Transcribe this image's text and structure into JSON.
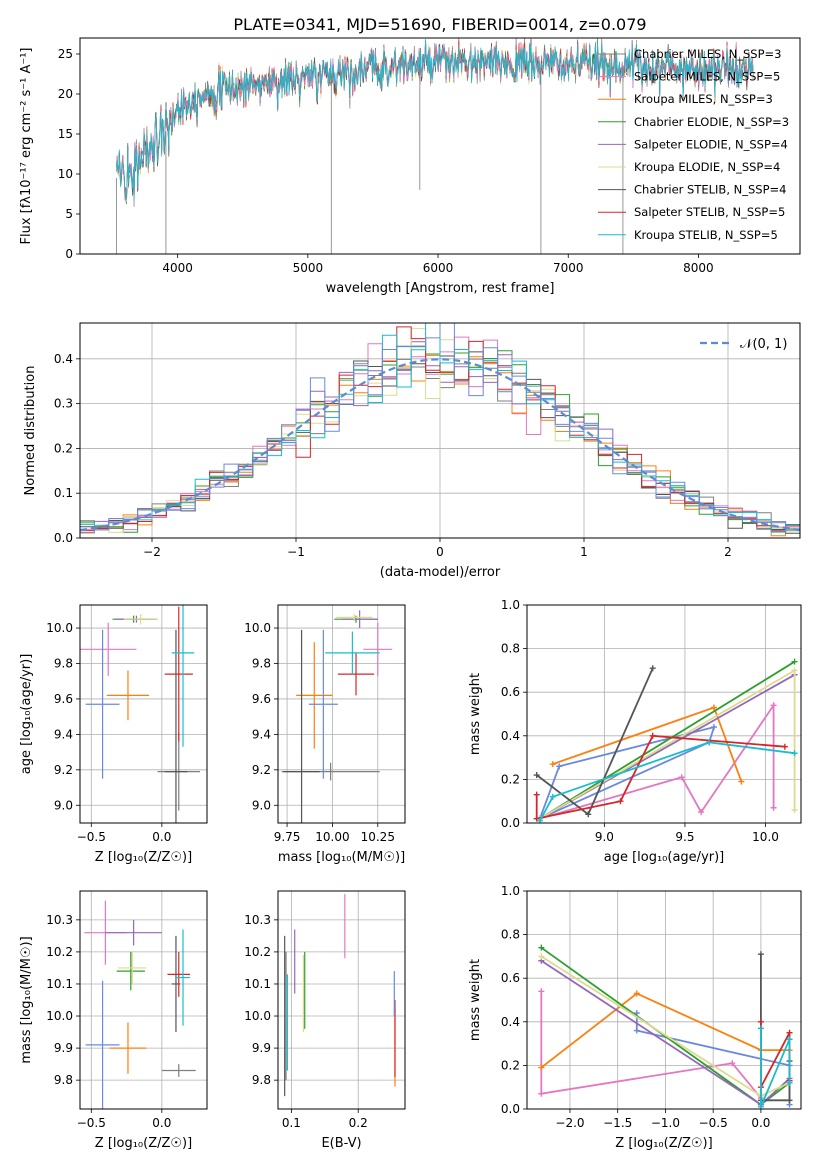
{
  "figure": {
    "title": "PLATE=0341, MJD=51690, FIBERID=0014, z=0.079"
  },
  "colors": {
    "chabrier_miles": "#7f7f7f",
    "salpeter_miles": "#e377c2",
    "kroupa_miles": "#ff7f0e",
    "chabrier_elodie": "#2ca02c",
    "salpeter_elodie": "#9467bd",
    "kroupa_elodie": "#dbdb8d",
    "chabrier_stelib": "#555555",
    "salpeter_stelib": "#d62728",
    "kroupa_stelib": "#17becf"
  },
  "chart_data": [
    {
      "id": "spectrum",
      "type": "line",
      "xlabel": "wavelength [Angstrom, rest frame]",
      "ylabel": "Flux [fλ10⁻¹⁷ erg cm⁻² s⁻¹ A⁻¹]",
      "xlim": [
        3250,
        8780
      ],
      "ylim": [
        0,
        27
      ],
      "xticks": [
        4000,
        5000,
        6000,
        7000,
        8000
      ],
      "yticks": [
        0,
        5,
        10,
        15,
        20,
        25
      ],
      "grid": false,
      "legend_position": "right",
      "legend": [
        {
          "label": "Chabrier MILES, N_SSP=3",
          "color": "#7f7f7f"
        },
        {
          "label": "Salpeter MILES, N_SSP=5",
          "color": "#e377c2"
        },
        {
          "label": "Kroupa MILES, N_SSP=3",
          "color": "#ff7f0e"
        },
        {
          "label": "Chabrier ELODIE, N_SSP=3",
          "color": "#2ca02c"
        },
        {
          "label": "Salpeter ELODIE, N_SSP=4",
          "color": "#9467bd"
        },
        {
          "label": "Kroupa ELODIE, N_SSP=4",
          "color": "#dbdb8d"
        },
        {
          "label": "Chabrier STELIB, N_SSP=4",
          "color": "#555555"
        },
        {
          "label": "Salpeter STELIB, N_SSP=5",
          "color": "#d62728"
        },
        {
          "label": "Kroupa STELIB, N_SSP=5",
          "color": "#17becf"
        }
      ],
      "x_range": [
        3530,
        8420
      ],
      "continuum_x": [
        3530,
        3700,
        3900,
        4000,
        4200,
        4500,
        5000,
        5500,
        6000,
        6500,
        7000,
        7500,
        8000,
        8420
      ],
      "continuum_y": [
        9.5,
        11.5,
        15,
        18.5,
        20,
        21,
        22,
        23.2,
        23.8,
        23.8,
        23.7,
        23.5,
        23.2,
        23.0
      ]
    },
    {
      "id": "residuals",
      "type": "histogram",
      "xlabel": "(data-model)/error",
      "ylabel": "Normed distribution",
      "xlim": [
        -2.5,
        2.5
      ],
      "ylim": [
        0,
        0.48
      ],
      "xticks": [
        -2,
        -1,
        0,
        1,
        2
      ],
      "yticks": [
        0.0,
        0.1,
        0.2,
        0.3,
        0.4
      ],
      "grid": true,
      "legend_position": "top-right",
      "reference_label": "𝒩(0, 1)",
      "bin_width": 0.1,
      "reference_curve": "normal(0,1)"
    },
    {
      "id": "age_vs_Z",
      "type": "errorbar",
      "xlabel": "Z [log₁₀(Z/Z☉)]",
      "ylabel": "age  [log₁₀(age/yr)]",
      "xlim": [
        -0.58,
        0.32
      ],
      "ylim": [
        8.9,
        10.13
      ],
      "xticks": [
        -0.5,
        0.0
      ],
      "yticks": [
        9.0,
        9.2,
        9.4,
        9.6,
        9.8,
        10.0
      ],
      "grid": true,
      "points": [
        {
          "x": 0.12,
          "xerr": 0.15,
          "y": 9.19,
          "yerr": 0.22,
          "color": "#7f7f7f"
        },
        {
          "x": -0.38,
          "xerr": 0.2,
          "y": 9.88,
          "yerr": 0.15,
          "color": "#e377c2"
        },
        {
          "x": -0.24,
          "xerr": 0.15,
          "y": 9.62,
          "yerr": 0.14,
          "color": "#ff7f0e"
        },
        {
          "x": -0.2,
          "xerr": 0.15,
          "y": 10.05,
          "yerr": 0.02,
          "color": "#2ca02c"
        },
        {
          "x": -0.18,
          "xerr": 0.15,
          "y": 10.05,
          "yerr": 0.02,
          "color": "#9467bd"
        },
        {
          "x": -0.15,
          "xerr": 0.12,
          "y": 10.05,
          "yerr": 0.03,
          "color": "#dbdb8d"
        },
        {
          "x": 0.1,
          "xerr": 0.08,
          "y": 9.19,
          "yerr": 0.8,
          "color": "#555555"
        },
        {
          "x": 0.12,
          "xerr": 0.1,
          "y": 9.74,
          "yerr": 0.38,
          "color": "#d62728"
        },
        {
          "x": 0.15,
          "xerr": 0.08,
          "y": 9.86,
          "yerr": 0.53,
          "color": "#17becf"
        },
        {
          "x": -0.42,
          "xerr": 0.12,
          "y": 9.57,
          "yerr": 0.42,
          "color": "#6a89e0"
        }
      ]
    },
    {
      "id": "age_vs_mass",
      "type": "errorbar",
      "xlabel": "mass [log₁₀(M/M☉)]",
      "ylabel": "",
      "xlim": [
        9.7,
        10.4
      ],
      "ylim": [
        8.9,
        10.13
      ],
      "xticks": [
        9.75,
        10.0,
        10.25
      ],
      "yticks": [
        9.0,
        9.2,
        9.4,
        9.6,
        9.8,
        10.0
      ],
      "grid": true,
      "points": [
        {
          "x": 9.99,
          "xerr": 0.27,
          "y": 9.19,
          "yerr": 0.05,
          "color": "#7f7f7f"
        },
        {
          "x": 10.25,
          "xerr": 0.08,
          "y": 9.88,
          "yerr": 0.15,
          "color": "#e377c2"
        },
        {
          "x": 9.9,
          "xerr": 0.1,
          "y": 9.62,
          "yerr": 0.3,
          "color": "#ff7f0e"
        },
        {
          "x": 10.13,
          "xerr": 0.12,
          "y": 10.05,
          "yerr": 0.02,
          "color": "#2ca02c"
        },
        {
          "x": 10.15,
          "xerr": 0.1,
          "y": 10.05,
          "yerr": 0.05,
          "color": "#9467bd"
        },
        {
          "x": 10.12,
          "xerr": 0.1,
          "y": 10.06,
          "yerr": 0.02,
          "color": "#dbdb8d"
        },
        {
          "x": 9.83,
          "xerr": 0.1,
          "y": 9.19,
          "yerr": 0.8,
          "color": "#555555"
        },
        {
          "x": 10.13,
          "xerr": 0.1,
          "y": 9.74,
          "yerr": 0.12,
          "color": "#d62728"
        },
        {
          "x": 10.11,
          "xerr": 0.15,
          "y": 9.86,
          "yerr": 0.12,
          "color": "#17becf"
        },
        {
          "x": 9.95,
          "xerr": 0.08,
          "y": 9.57,
          "yerr": 0.42,
          "color": "#6a89e0"
        }
      ]
    },
    {
      "id": "weight_vs_age",
      "type": "line",
      "xlabel": "age  [log₁₀(age/yr)]",
      "ylabel": "mass weight",
      "xlim": [
        8.52,
        10.22
      ],
      "ylim": [
        0,
        1.0
      ],
      "xticks": [
        9.0,
        9.5,
        10.0
      ],
      "yticks": [
        0.0,
        0.2,
        0.4,
        0.6,
        0.8,
        1.0
      ],
      "grid": true,
      "series": [
        {
          "color": "#6a89e0",
          "x": [
            8.6,
            9.65,
            9.68,
            8.72,
            8.6
          ],
          "y": [
            0.02,
            0.37,
            0.44,
            0.26,
            0.02
          ]
        },
        {
          "color": "#e377c2",
          "x": [
            8.6,
            9.48,
            9.6,
            10.05,
            10.05
          ],
          "y": [
            0.02,
            0.21,
            0.05,
            0.54,
            0.07
          ]
        },
        {
          "color": "#ff7f0e",
          "x": [
            8.68,
            9.68,
            9.85
          ],
          "y": [
            0.27,
            0.53,
            0.19
          ]
        },
        {
          "color": "#2ca02c",
          "x": [
            8.6,
            10.18
          ],
          "y": [
            0.02,
            0.74
          ]
        },
        {
          "color": "#9467bd",
          "x": [
            8.6,
            10.18
          ],
          "y": [
            0.02,
            0.68
          ]
        },
        {
          "color": "#dbdb8d",
          "x": [
            8.6,
            10.18,
            10.18
          ],
          "y": [
            0.02,
            0.7,
            0.06
          ]
        },
        {
          "color": "#555555",
          "x": [
            8.58,
            8.9,
            9.3
          ],
          "y": [
            0.22,
            0.04,
            0.71
          ]
        },
        {
          "color": "#d62728",
          "x": [
            8.58,
            8.58,
            9.1,
            9.3,
            10.12
          ],
          "y": [
            0.13,
            0.02,
            0.1,
            0.4,
            0.35
          ]
        },
        {
          "color": "#17becf",
          "x": [
            8.6,
            8.68,
            9.65,
            10.18
          ],
          "y": [
            0.01,
            0.12,
            0.37,
            0.32
          ]
        }
      ]
    },
    {
      "id": "mass_vs_Z",
      "type": "errorbar",
      "xlabel": "Z [log₁₀(Z/Z☉)]",
      "ylabel": "mass [log₁₀(M/M☉)]",
      "xlim": [
        -0.58,
        0.32
      ],
      "ylim": [
        9.71,
        10.39
      ],
      "xticks": [
        -0.5,
        0.0
      ],
      "yticks": [
        9.8,
        9.9,
        10.0,
        10.1,
        10.2,
        10.3
      ],
      "grid": true,
      "points": [
        {
          "x": 0.12,
          "xerr": 0.12,
          "y": 9.83,
          "yerr": 0.02,
          "color": "#7f7f7f"
        },
        {
          "x": -0.4,
          "xerr": 0.15,
          "y": 10.26,
          "yerr": 0.1,
          "color": "#e377c2"
        },
        {
          "x": -0.24,
          "xerr": 0.13,
          "y": 9.9,
          "yerr": 0.08,
          "color": "#ff7f0e"
        },
        {
          "x": -0.22,
          "xerr": 0.1,
          "y": 10.14,
          "yerr": 0.06,
          "color": "#2ca02c"
        },
        {
          "x": -0.2,
          "xerr": 0.2,
          "y": 10.26,
          "yerr": 0.04,
          "color": "#9467bd"
        },
        {
          "x": -0.21,
          "xerr": 0.1,
          "y": 10.15,
          "yerr": 0.05,
          "color": "#dbdb8d"
        },
        {
          "x": 0.1,
          "xerr": 0.03,
          "y": 10.1,
          "yerr": 0.15,
          "color": "#555555"
        },
        {
          "x": 0.12,
          "xerr": 0.08,
          "y": 10.13,
          "yerr": 0.07,
          "color": "#d62728"
        },
        {
          "x": 0.15,
          "xerr": 0.05,
          "y": 10.12,
          "yerr": 0.15,
          "color": "#17becf"
        },
        {
          "x": -0.42,
          "xerr": 0.12,
          "y": 9.91,
          "yerr": 0.2,
          "color": "#6a89e0"
        }
      ]
    },
    {
      "id": "mass_vs_ebv",
      "type": "errorbar",
      "xlabel": "E(B-V)",
      "ylabel": "",
      "xlim": [
        0.08,
        0.27
      ],
      "ylim": [
        9.71,
        10.39
      ],
      "xticks": [
        0.1,
        0.2
      ],
      "yticks": [
        9.8,
        9.9,
        10.0,
        10.1,
        10.2,
        10.3
      ],
      "grid": true,
      "points": [
        {
          "x": 0.092,
          "y": 10.0,
          "yerr": 0.2,
          "color": "#7f7f7f"
        },
        {
          "x": 0.18,
          "y": 10.28,
          "yerr": 0.1,
          "color": "#e377c2"
        },
        {
          "x": 0.255,
          "y": 9.9,
          "yerr": 0.12,
          "color": "#ff7f0e"
        },
        {
          "x": 0.12,
          "y": 10.08,
          "yerr": 0.12,
          "color": "#2ca02c"
        },
        {
          "x": 0.105,
          "y": 10.17,
          "yerr": 0.1,
          "color": "#9467bd"
        },
        {
          "x": 0.118,
          "y": 10.07,
          "yerr": 0.12,
          "color": "#dbdb8d"
        },
        {
          "x": 0.09,
          "y": 10.0,
          "yerr": 0.25,
          "color": "#555555"
        },
        {
          "x": 0.255,
          "y": 9.93,
          "yerr": 0.12,
          "color": "#d62728"
        },
        {
          "x": 0.094,
          "y": 9.98,
          "yerr": 0.15,
          "color": "#17becf"
        },
        {
          "x": 0.254,
          "y": 10.07,
          "yerr": 0.07,
          "color": "#6a89e0"
        }
      ]
    },
    {
      "id": "weight_vs_Z",
      "type": "line",
      "xlabel": "Z [log₁₀(Z/Z☉)]",
      "ylabel": "mass weight",
      "xlim": [
        -2.45,
        0.42
      ],
      "ylim": [
        0,
        1.0
      ],
      "xticks": [
        -2.0,
        -1.5,
        -1.0,
        -0.5,
        0.0
      ],
      "yticks": [
        0.0,
        0.2,
        0.4,
        0.6,
        0.8,
        1.0
      ],
      "grid": true,
      "series": [
        {
          "color": "#6a89e0",
          "x": [
            -1.3,
            -1.3,
            0.3,
            0.3
          ],
          "y": [
            0.44,
            0.36,
            0.2,
            0.02
          ]
        },
        {
          "color": "#e377c2",
          "x": [
            -2.3,
            -2.3,
            -0.3,
            0.0
          ],
          "y": [
            0.54,
            0.07,
            0.21,
            0.05
          ]
        },
        {
          "color": "#ff7f0e",
          "x": [
            -2.3,
            -1.3,
            0.0,
            0.3
          ],
          "y": [
            0.19,
            0.53,
            0.27,
            0.27
          ]
        },
        {
          "color": "#2ca02c",
          "x": [
            -2.3,
            0.0,
            0.3
          ],
          "y": [
            0.74,
            0.02,
            0.12
          ]
        },
        {
          "color": "#9467bd",
          "x": [
            -2.3,
            0.0,
            0.3
          ],
          "y": [
            0.68,
            0.02,
            0.14
          ]
        },
        {
          "color": "#dbdb8d",
          "x": [
            -2.3,
            0.0,
            0.3
          ],
          "y": [
            0.7,
            0.06,
            0.12
          ]
        },
        {
          "color": "#555555",
          "x": [
            0.0,
            0.0,
            0.3,
            0.3
          ],
          "y": [
            0.71,
            0.04,
            0.04,
            0.22
          ]
        },
        {
          "color": "#d62728",
          "x": [
            0.0,
            0.0,
            0.3,
            0.3
          ],
          "y": [
            0.4,
            0.1,
            0.35,
            0.13
          ]
        },
        {
          "color": "#17becf",
          "x": [
            0.0,
            0.0,
            0.3,
            0.3
          ],
          "y": [
            0.37,
            0.01,
            0.32,
            0.12
          ]
        }
      ]
    }
  ]
}
